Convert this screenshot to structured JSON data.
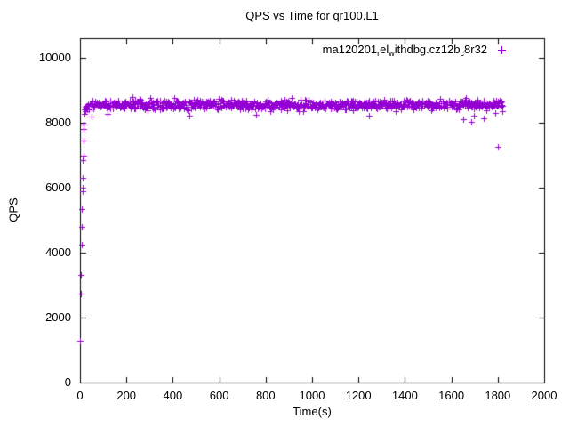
{
  "meta": {
    "background_color": "#FFFFFF",
    "axis_color": "#000000",
    "text_color": "#000000"
  },
  "chart_data": {
    "type": "scatter",
    "title": "QPS vs Time for qr100.L1",
    "xlabel": "Time(s)",
    "ylabel": "QPS",
    "xlim": [
      0,
      2000
    ],
    "ylim": [
      0,
      10600
    ],
    "xticks": [
      0,
      200,
      400,
      600,
      800,
      1000,
      1200,
      1400,
      1600,
      1800,
      2000
    ],
    "xtick_labels": [
      "0",
      "200",
      "400",
      "600",
      "800",
      "1000",
      "1200",
      "1400",
      "1600",
      "1800",
      "2000"
    ],
    "yticks": [
      0,
      2000,
      4000,
      6000,
      8000,
      10000
    ],
    "ytick_labels": [
      "0",
      "2000",
      "4000",
      "6000",
      "8000",
      "10000"
    ],
    "grid": false,
    "legend_position": "top-right-inside",
    "marker": {
      "glyph": "plus",
      "color": "#9400D3",
      "size": 7
    },
    "series": [
      {
        "name_raw": "ma120201_rel_withdbg.cz12b_c8r32",
        "label_segments": [
          {
            "t": "ma120201"
          },
          {
            "t": "r",
            "sub": true
          },
          {
            "t": "el"
          },
          {
            "t": "w",
            "sub": true
          },
          {
            "t": "ithdbg.cz12b"
          },
          {
            "t": "c",
            "sub": true
          },
          {
            "t": "8r32"
          }
        ],
        "ramp_points": [
          [
            1,
            1290
          ],
          [
            3,
            2740
          ],
          [
            5,
            3320
          ],
          [
            6,
            4250
          ],
          [
            8,
            4790
          ],
          [
            9,
            5340
          ],
          [
            10,
            5890
          ],
          [
            11,
            5990
          ],
          [
            12,
            6300
          ],
          [
            13,
            6850
          ],
          [
            14,
            6990
          ],
          [
            15,
            7450
          ],
          [
            16,
            7800
          ],
          [
            17,
            7940
          ],
          [
            18,
            8270
          ],
          [
            20,
            8420
          ],
          [
            22,
            8480
          ],
          [
            24,
            8350
          ],
          [
            26,
            8520
          ],
          [
            28,
            8460
          ]
        ],
        "steady_state": {
          "x_start": 30,
          "x_end": 1822,
          "count": 850,
          "y_mean": 8550,
          "y_spread": 260,
          "y_min": 8140,
          "y_max": 8870,
          "seed": 1234567
        },
        "dip_points": [
          [
            48,
            8190
          ],
          [
            120,
            8260
          ],
          [
            470,
            8210
          ],
          [
            760,
            8250
          ],
          [
            1245,
            8230
          ],
          [
            1652,
            8120
          ],
          [
            1686,
            8030
          ],
          [
            1698,
            8220
          ],
          [
            1738,
            8140
          ],
          [
            1790,
            8300
          ]
        ],
        "outlier_points": [
          [
            1800,
            7250
          ]
        ]
      }
    ]
  }
}
